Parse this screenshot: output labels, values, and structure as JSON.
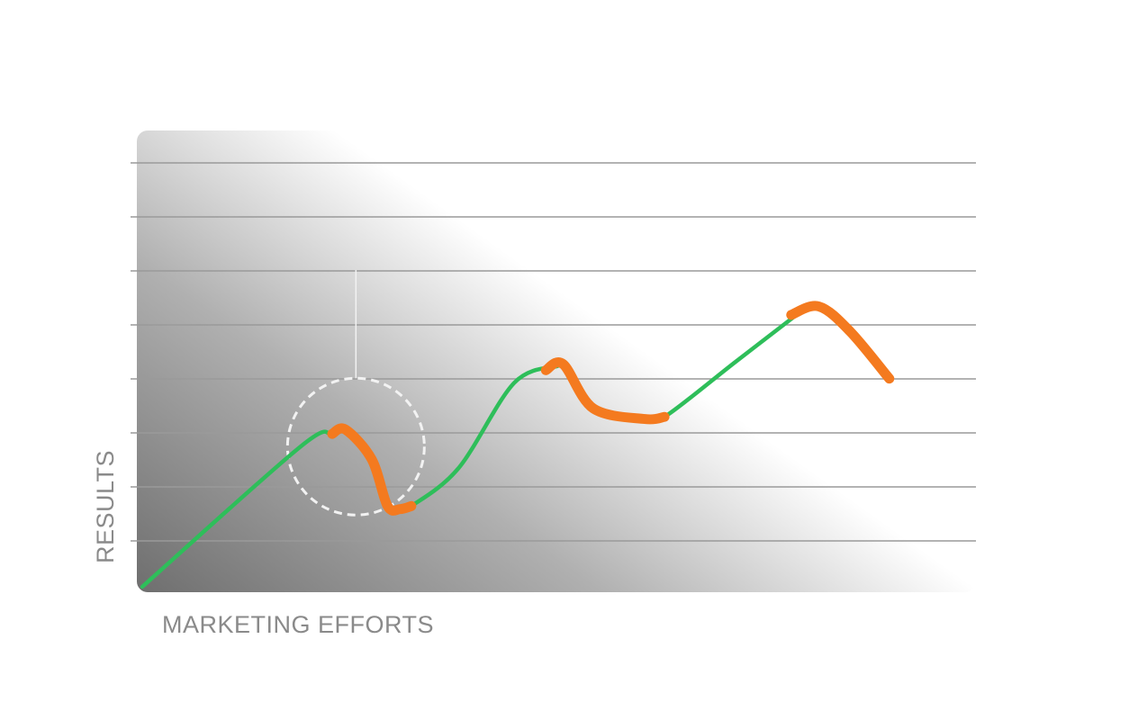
{
  "chart_data": {
    "type": "line",
    "title": "",
    "xlabel": "MARKETING EFFORTS",
    "ylabel": "RESULTS",
    "grid": true,
    "gridlines": 8,
    "xlim": [
      0,
      100
    ],
    "ylim": [
      0,
      100
    ],
    "legend": "none",
    "colors": {
      "growth": "#2ebe5a",
      "dip": "#f47a1f",
      "gridline": "#9a9a9a",
      "gradient_dark": "#6e6e6e",
      "marker_circle": "#f2f2f2"
    },
    "series": [
      {
        "segments": [
          {
            "kind": "growth",
            "points": [
              [
                0,
                0
              ],
              [
                20,
                33
              ],
              [
                24,
                36
              ],
              [
                25.7,
                37
              ]
            ]
          },
          {
            "kind": "dip",
            "points": [
              [
                24,
                36
              ],
              [
                25.7,
                37
              ],
              [
                29,
                30
              ],
              [
                31,
                19
              ],
              [
                32.6,
                18.3
              ],
              [
                34,
                19
              ]
            ]
          },
          {
            "kind": "growth",
            "points": [
              [
                32.6,
                18.3
              ],
              [
                34,
                19
              ],
              [
                40,
                28
              ],
              [
                47,
                48
              ],
              [
                52.5,
                52
              ]
            ]
          },
          {
            "kind": "dip",
            "points": [
              [
                51,
                51
              ],
              [
                53.2,
                52.4
              ],
              [
                57,
                42
              ],
              [
                63.5,
                39.5
              ],
              [
                66,
                40
              ]
            ]
          },
          {
            "kind": "growth",
            "points": [
              [
                63.5,
                39.5
              ],
              [
                66,
                40
              ],
              [
                75,
                53
              ],
              [
                83,
                64.5
              ]
            ]
          },
          {
            "kind": "dip",
            "points": [
              [
                82,
                64
              ],
              [
                85.5,
                66
              ],
              [
                89.5,
                60
              ],
              [
                94.4,
                49
              ]
            ]
          }
        ]
      }
    ],
    "annotations": [
      {
        "type": "circle",
        "x": 27,
        "y": 33
      }
    ]
  }
}
